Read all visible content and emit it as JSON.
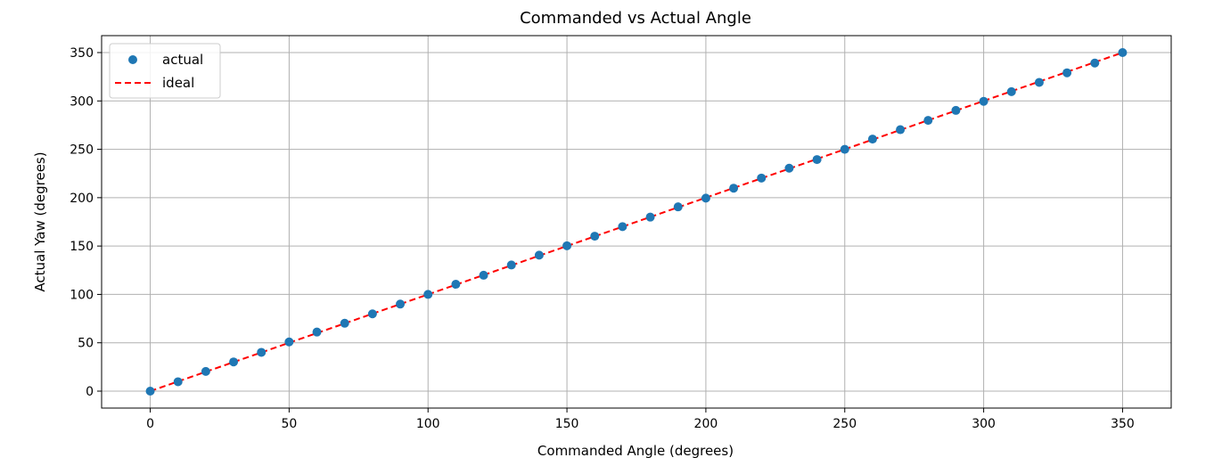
{
  "chart_data": {
    "type": "scatter",
    "title": "Commanded vs Actual Angle",
    "xlabel": "Commanded Angle (degrees)",
    "ylabel": "Actual Yaw (degrees)",
    "xlim": [
      -17.5,
      367.5
    ],
    "ylim": [
      -17.5,
      367.5
    ],
    "xticks": [
      0,
      50,
      100,
      150,
      200,
      250,
      300,
      350
    ],
    "yticks": [
      0,
      50,
      100,
      150,
      200,
      250,
      300,
      350
    ],
    "grid": true,
    "legend_position": "top-left",
    "series": [
      {
        "name": "actual",
        "kind": "scatter",
        "color": "#1f77b4",
        "x": [
          0,
          10,
          20,
          30,
          40,
          50,
          60,
          70,
          80,
          90,
          100,
          110,
          120,
          130,
          140,
          150,
          160,
          170,
          180,
          190,
          200,
          210,
          220,
          230,
          240,
          250,
          260,
          270,
          280,
          290,
          300,
          310,
          320,
          330,
          340,
          350
        ],
        "y": [
          0,
          9.7,
          20.4,
          30.2,
          40.1,
          50.9,
          61.1,
          70.2,
          79.9,
          90.0,
          100.0,
          110.5,
          119.8,
          130.4,
          140.6,
          150.3,
          160.2,
          170.1,
          179.9,
          190.5,
          199.5,
          209.8,
          220.3,
          230.5,
          239.4,
          250.0,
          260.6,
          270.3,
          279.9,
          290.2,
          299.6,
          309.6,
          319.2,
          329.1,
          339.2,
          350.0
        ]
      },
      {
        "name": "ideal",
        "kind": "line",
        "color": "#ff0000",
        "style": "dashed",
        "x": [
          0,
          350
        ],
        "y": [
          0,
          350
        ]
      }
    ]
  }
}
